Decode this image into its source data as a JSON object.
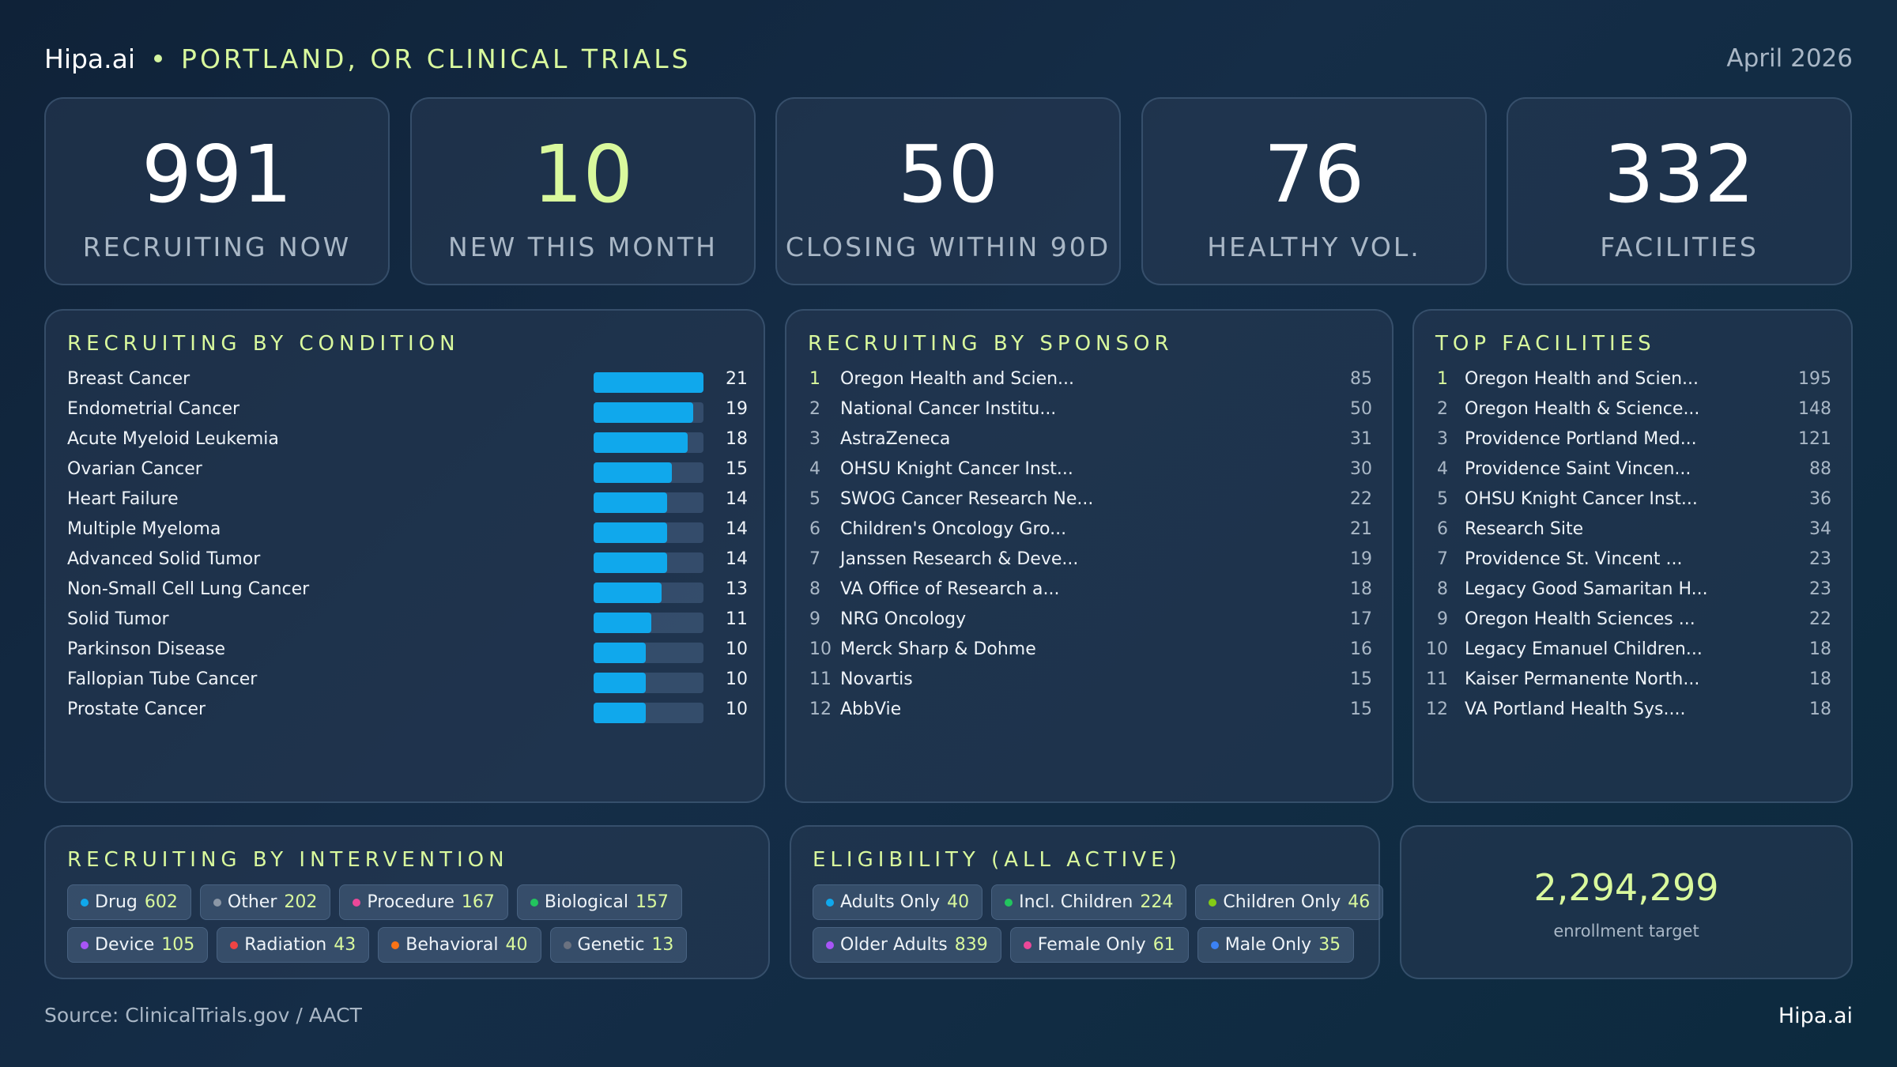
{
  "header": {
    "brand": "Hipa.ai",
    "title": "PORTLAND, OR CLINICAL TRIALS",
    "date": "April 2026"
  },
  "kpis": [
    {
      "value": "991",
      "label": "RECRUITING NOW"
    },
    {
      "value": "10",
      "label": "NEW THIS MONTH"
    },
    {
      "value": "50",
      "label": "CLOSING WITHIN 90D"
    },
    {
      "value": "76",
      "label": "HEALTHY VOL."
    },
    {
      "value": "332",
      "label": "FACILITIES"
    }
  ],
  "condition": {
    "title": "RECRUITING BY CONDITION",
    "max_value": 21,
    "bar_color": "#10a8ec",
    "rows": [
      {
        "name": "Breast Cancer",
        "count": 21
      },
      {
        "name": "Endometrial Cancer",
        "count": 19
      },
      {
        "name": "Acute Myeloid Leukemia",
        "count": 18
      },
      {
        "name": "Ovarian Cancer",
        "count": 15
      },
      {
        "name": "Heart Failure",
        "count": 14
      },
      {
        "name": "Multiple Myeloma",
        "count": 14
      },
      {
        "name": "Advanced Solid Tumor",
        "count": 14
      },
      {
        "name": "Non-Small Cell Lung Cancer",
        "count": 13
      },
      {
        "name": "Solid Tumor",
        "count": 11
      },
      {
        "name": "Parkinson Disease",
        "count": 10
      },
      {
        "name": "Fallopian Tube Cancer",
        "count": 10
      },
      {
        "name": "Prostate Cancer",
        "count": 10
      }
    ]
  },
  "sponsor": {
    "title": "RECRUITING BY SPONSOR",
    "rows": [
      {
        "rank": "1",
        "name": "Oregon Health and Scien...",
        "count": "85"
      },
      {
        "rank": "2",
        "name": "National Cancer Institu...",
        "count": "50"
      },
      {
        "rank": "3",
        "name": "AstraZeneca",
        "count": "31"
      },
      {
        "rank": "4",
        "name": "OHSU Knight Cancer Inst...",
        "count": "30"
      },
      {
        "rank": "5",
        "name": "SWOG Cancer Research Ne...",
        "count": "22"
      },
      {
        "rank": "6",
        "name": "Children's Oncology Gro...",
        "count": "21"
      },
      {
        "rank": "7",
        "name": "Janssen Research & Deve...",
        "count": "19"
      },
      {
        "rank": "8",
        "name": "VA Office of Research a...",
        "count": "18"
      },
      {
        "rank": "9",
        "name": "NRG Oncology",
        "count": "17"
      },
      {
        "rank": "10",
        "name": "Merck Sharp & Dohme",
        "count": "16"
      },
      {
        "rank": "11",
        "name": "Novartis",
        "count": "15"
      },
      {
        "rank": "12",
        "name": "AbbVie",
        "count": "15"
      }
    ]
  },
  "facilities": {
    "title": "TOP FACILITIES",
    "rows": [
      {
        "rank": "1",
        "name": "Oregon Health and Scien...",
        "count": "195"
      },
      {
        "rank": "2",
        "name": "Oregon Health & Science...",
        "count": "148"
      },
      {
        "rank": "3",
        "name": "Providence Portland Med...",
        "count": "121"
      },
      {
        "rank": "4",
        "name": "Providence Saint Vincen...",
        "count": "88"
      },
      {
        "rank": "5",
        "name": "OHSU Knight Cancer Inst...",
        "count": "36"
      },
      {
        "rank": "6",
        "name": "Research Site",
        "count": "34"
      },
      {
        "rank": "7",
        "name": "Providence St. Vincent ...",
        "count": "23"
      },
      {
        "rank": "8",
        "name": "Legacy Good Samaritan H...",
        "count": "23"
      },
      {
        "rank": "9",
        "name": "Oregon Health Sciences ...",
        "count": "22"
      },
      {
        "rank": "10",
        "name": "Legacy Emanuel Children...",
        "count": "18"
      },
      {
        "rank": "11",
        "name": "Kaiser Permanente North...",
        "count": "18"
      },
      {
        "rank": "12",
        "name": "VA Portland Health Sys....",
        "count": "18"
      }
    ]
  },
  "intervention": {
    "title": "RECRUITING BY INTERVENTION",
    "chip_lines": [
      [
        {
          "label": "Drug",
          "value": "602",
          "color": "#10a8ec"
        },
        {
          "label": "Other",
          "value": "202",
          "color": "#8b97a6"
        },
        {
          "label": "Procedure",
          "value": "167",
          "color": "#ec4899"
        },
        {
          "label": "Biological",
          "value": "157",
          "color": "#22c55e"
        }
      ],
      [
        {
          "label": "Device",
          "value": "105",
          "color": "#a855f7"
        },
        {
          "label": "Radiation",
          "value": "43",
          "color": "#ef4444"
        },
        {
          "label": "Behavioral",
          "value": "40",
          "color": "#f97316"
        },
        {
          "label": "Genetic",
          "value": "13",
          "color": "#6b7280"
        }
      ]
    ]
  },
  "eligibility": {
    "title": "ELIGIBILITY (ALL ACTIVE)",
    "chip_lines": [
      [
        {
          "label": "Adults Only",
          "value": "40",
          "color": "#10a8ec"
        },
        {
          "label": "Incl. Children",
          "value": "224",
          "color": "#22c55e"
        },
        {
          "label": "Children Only",
          "value": "46",
          "color": "#84cc16"
        }
      ],
      [
        {
          "label": "Older Adults",
          "value": "839",
          "color": "#a855f7"
        },
        {
          "label": "Female Only",
          "value": "61",
          "color": "#ec4899"
        },
        {
          "label": "Male Only",
          "value": "35",
          "color": "#3b82f6"
        }
      ]
    ]
  },
  "enrollment": {
    "value": "2,294,299",
    "label": "enrollment target"
  },
  "footer": {
    "source": "Source: ClinicalTrials.gov / AACT",
    "brand": "Hipa.ai"
  }
}
